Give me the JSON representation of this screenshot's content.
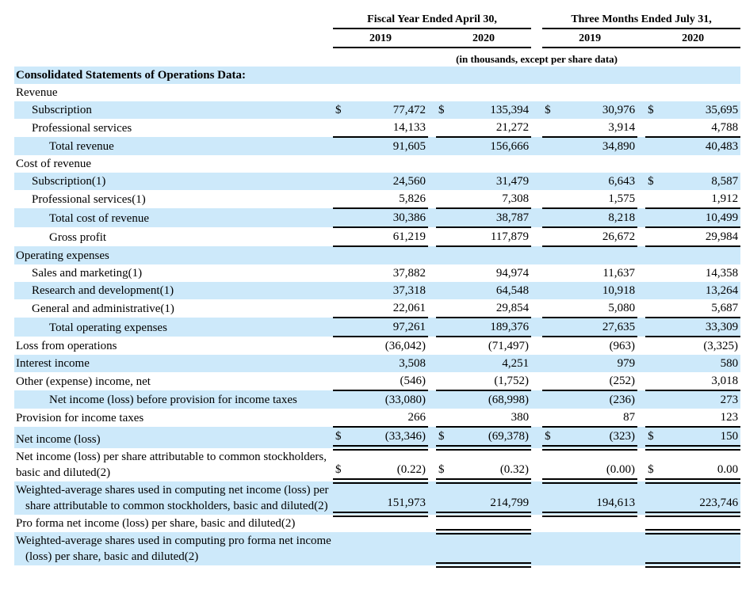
{
  "colors": {
    "highlight": "#cde9fa",
    "rule": "#000000"
  },
  "table": {
    "header": {
      "groups": [
        {
          "label": "Fiscal Year Ended April 30,",
          "years": [
            "2019",
            "2020"
          ]
        },
        {
          "label": "Three Months Ended July 31,",
          "years": [
            "2019",
            "2020"
          ]
        }
      ]
    },
    "units_note": "(in thousands, except per share data)",
    "rows": [
      {
        "label": "Consolidated Statements of Operations Data:",
        "bold": true,
        "shaded": true,
        "indent": 0,
        "cells": null
      },
      {
        "label": "Revenue",
        "indent": 0,
        "cells": null
      },
      {
        "label": "Subscription",
        "indent": 1,
        "shaded": true,
        "cells": [
          [
            "$",
            "77,472",
            ""
          ],
          [
            "$",
            "135,394",
            ""
          ],
          [
            "$",
            "30,976",
            ""
          ],
          [
            "$",
            "35,695",
            ""
          ]
        ]
      },
      {
        "label": "Professional services",
        "indent": 1,
        "cells": [
          [
            "",
            "14,133",
            "s"
          ],
          [
            "",
            "21,272",
            "s"
          ],
          [
            "",
            "3,914",
            "s"
          ],
          [
            "",
            "4,788",
            "s"
          ]
        ]
      },
      {
        "label": "Total revenue",
        "indent": 2,
        "shaded": true,
        "cells": [
          [
            "",
            "91,605",
            ""
          ],
          [
            "",
            "156,666",
            ""
          ],
          [
            "",
            "34,890",
            ""
          ],
          [
            "",
            "40,483",
            ""
          ]
        ]
      },
      {
        "label": "Cost of revenue",
        "indent": 0,
        "cells": null
      },
      {
        "label": "Subscription(1)",
        "indent": 1,
        "shaded": true,
        "cells": [
          [
            "",
            "24,560",
            ""
          ],
          [
            "",
            "31,479",
            ""
          ],
          [
            "",
            "6,643",
            ""
          ],
          [
            "$",
            "8,587",
            ""
          ]
        ]
      },
      {
        "label": "Professional services(1)",
        "indent": 1,
        "cells": [
          [
            "",
            "5,826",
            "s"
          ],
          [
            "",
            "7,308",
            "s"
          ],
          [
            "",
            "1,575",
            "s"
          ],
          [
            "",
            "1,912",
            "s"
          ]
        ]
      },
      {
        "label": "Total cost of revenue",
        "indent": 2,
        "shaded": true,
        "cells": [
          [
            "",
            "30,386",
            "s"
          ],
          [
            "",
            "38,787",
            "s"
          ],
          [
            "",
            "8,218",
            "s"
          ],
          [
            "",
            "10,499",
            "s"
          ]
        ]
      },
      {
        "label": "Gross profit",
        "indent": 2,
        "cells": [
          [
            "",
            "61,219",
            "s"
          ],
          [
            "",
            "117,879",
            "s"
          ],
          [
            "",
            "26,672",
            "s"
          ],
          [
            "",
            "29,984",
            "s"
          ]
        ]
      },
      {
        "label": "Operating expenses",
        "indent": 0,
        "shaded": true,
        "cells": null
      },
      {
        "label": "Sales and marketing(1)",
        "indent": 1,
        "cells": [
          [
            "",
            "37,882",
            ""
          ],
          [
            "",
            "94,974",
            ""
          ],
          [
            "",
            "11,637",
            ""
          ],
          [
            "",
            "14,358",
            ""
          ]
        ]
      },
      {
        "label": "Research and development(1)",
        "indent": 1,
        "shaded": true,
        "cells": [
          [
            "",
            "37,318",
            ""
          ],
          [
            "",
            "64,548",
            ""
          ],
          [
            "",
            "10,918",
            ""
          ],
          [
            "",
            "13,264",
            ""
          ]
        ]
      },
      {
        "label": "General and administrative(1)",
        "indent": 1,
        "cells": [
          [
            "",
            "22,061",
            "s"
          ],
          [
            "",
            "29,854",
            "s"
          ],
          [
            "",
            "5,080",
            "s"
          ],
          [
            "",
            "5,687",
            "s"
          ]
        ]
      },
      {
        "label": "Total operating expenses",
        "indent": 2,
        "shaded": true,
        "cells": [
          [
            "",
            "97,261",
            "s"
          ],
          [
            "",
            "189,376",
            "s"
          ],
          [
            "",
            "27,635",
            "s"
          ],
          [
            "",
            "33,309",
            "s"
          ]
        ]
      },
      {
        "label": "Loss from operations",
        "indent": 0,
        "cells": [
          [
            "",
            "(36,042)",
            ""
          ],
          [
            "",
            "(71,497)",
            ""
          ],
          [
            "",
            "(963)",
            ""
          ],
          [
            "",
            "(3,325)",
            ""
          ]
        ]
      },
      {
        "label": "Interest income",
        "indent": 0,
        "shaded": true,
        "cells": [
          [
            "",
            "3,508",
            ""
          ],
          [
            "",
            "4,251",
            ""
          ],
          [
            "",
            "979",
            ""
          ],
          [
            "",
            "580",
            ""
          ]
        ]
      },
      {
        "label": "Other (expense) income, net",
        "indent": 0,
        "cells": [
          [
            "",
            "(546)",
            "s"
          ],
          [
            "",
            "(1,752)",
            "s"
          ],
          [
            "",
            "(252)",
            "s"
          ],
          [
            "",
            "3,018",
            "s"
          ]
        ]
      },
      {
        "label": "Net income (loss) before provision for income taxes",
        "indent": 2,
        "shaded": true,
        "cells": [
          [
            "",
            "(33,080)",
            ""
          ],
          [
            "",
            "(68,998)",
            ""
          ],
          [
            "",
            "(236)",
            ""
          ],
          [
            "",
            "273",
            ""
          ]
        ]
      },
      {
        "label": "Provision for income taxes",
        "indent": 0,
        "cells": [
          [
            "",
            "266",
            "s"
          ],
          [
            "",
            "380",
            "s"
          ],
          [
            "",
            "87",
            "s"
          ],
          [
            "",
            "123",
            "s"
          ]
        ]
      },
      {
        "label": "Net income (loss)",
        "indent": 0,
        "shaded": true,
        "cells": [
          [
            "$",
            "(33,346)",
            "d"
          ],
          [
            "$",
            "(69,378)",
            "d"
          ],
          [
            "$",
            "(323)",
            "d"
          ],
          [
            "$",
            "150",
            "d"
          ]
        ]
      },
      {
        "label": "Net income (loss) per share attributable to common stockholders, basic and diluted(2)",
        "indent": 0,
        "cells": [
          [
            "$",
            "(0.22)",
            "d"
          ],
          [
            "$",
            "(0.32)",
            "d"
          ],
          [
            "",
            "(0.00)",
            "d"
          ],
          [
            "$",
            "0.00",
            "d"
          ]
        ]
      },
      {
        "label": "Weighted-average shares used in computing net income (loss) per share attributable to common stockholders, basic and diluted(2)",
        "indent": 0,
        "hang": true,
        "shaded": true,
        "cells": [
          [
            "",
            "151,973",
            "d"
          ],
          [
            "",
            "214,799",
            "d"
          ],
          [
            "",
            "194,613",
            "d"
          ],
          [
            "",
            "223,746",
            "d"
          ]
        ]
      },
      {
        "label": "Pro forma net income (loss) per share, basic and diluted(2)",
        "indent": 0,
        "cells": [
          [
            "",
            "",
            ""
          ],
          [
            "",
            "",
            "d"
          ],
          [
            "",
            "",
            ""
          ],
          [
            "",
            "",
            "d"
          ]
        ]
      },
      {
        "label": "Weighted-average shares used in computing pro forma net income (loss) per share, basic and diluted(2)",
        "indent": 0,
        "hang": true,
        "shaded": true,
        "cells": [
          [
            "",
            "",
            ""
          ],
          [
            "",
            "",
            "d"
          ],
          [
            "",
            "",
            ""
          ],
          [
            "",
            "",
            "d"
          ]
        ]
      }
    ]
  }
}
